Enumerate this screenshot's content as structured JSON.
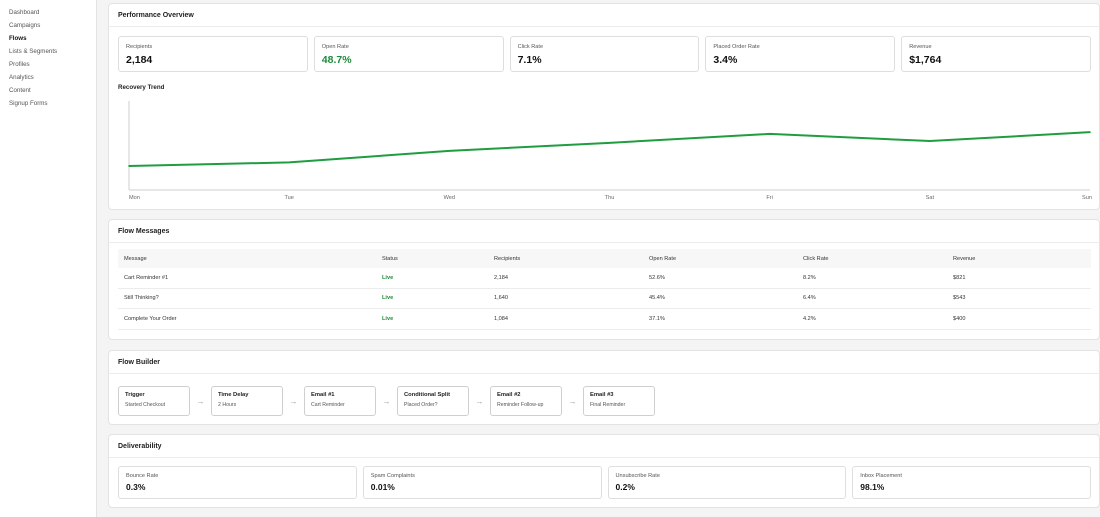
{
  "sidebar": {
    "items": [
      {
        "label": "Dashboard"
      },
      {
        "label": "Campaigns"
      },
      {
        "label": "Flows"
      },
      {
        "label": "Lists & Segments"
      },
      {
        "label": "Profiles"
      },
      {
        "label": "Analytics"
      },
      {
        "label": "Content"
      },
      {
        "label": "Signup Forms"
      }
    ],
    "active": "Flows"
  },
  "performance": {
    "title": "Performance Overview",
    "metrics": [
      {
        "label": "Recipients",
        "value": "2,184"
      },
      {
        "label": "Open Rate",
        "value": "48.7%"
      },
      {
        "label": "Click Rate",
        "value": "7.1%"
      },
      {
        "label": "Placed Order Rate",
        "value": "3.4%"
      },
      {
        "label": "Revenue",
        "value": "$1,764"
      }
    ],
    "accent_color": "#1f8a3b"
  },
  "chart_data": {
    "type": "line",
    "title": "Recovery Trend",
    "categories": [
      "Mon",
      "Tue",
      "Wed",
      "Thu",
      "Fri",
      "Sat",
      "Sun"
    ],
    "series": [
      {
        "values": [
          0.27,
          0.31,
          0.44,
          0.53,
          0.63,
          0.55,
          0.65
        ],
        "color": "#1f9d3f"
      }
    ],
    "grid": false,
    "note_values": "relative level on unlabeled y axis (0 = axis baseline, 1 = top of axis)"
  },
  "messages": {
    "title": "Flow Messages",
    "columns": [
      "Message",
      "Status",
      "Recipients",
      "Open Rate",
      "Click Rate",
      "Revenue"
    ],
    "rows": [
      [
        "Cart Reminder #1",
        "Live",
        "2,184",
        "52.6%",
        "8.2%",
        "$821"
      ],
      [
        "Still Thinking?",
        "Live",
        "1,640",
        "45.4%",
        "6.4%",
        "$543"
      ],
      [
        "Complete Your Order",
        "Live",
        "1,084",
        "37.1%",
        "4.2%",
        "$400"
      ]
    ]
  },
  "builder": {
    "title": "Flow Builder",
    "arrow": "→",
    "steps": [
      {
        "title": "Trigger",
        "sub": "Started Checkout"
      },
      {
        "title": "Time Delay",
        "sub": "2 Hours"
      },
      {
        "title": "Email #1",
        "sub": "Cart Reminder"
      },
      {
        "title": "Conditional Split",
        "sub": "Placed Order?"
      },
      {
        "title": "Email #2",
        "sub": "Reminder Follow-up"
      },
      {
        "title": "Email #3",
        "sub": "Final Reminder"
      }
    ]
  },
  "deliverability": {
    "title": "Deliverability",
    "metrics": [
      {
        "label": "Bounce Rate",
        "value": "0.3%"
      },
      {
        "label": "Spam Complaints",
        "value": "0.01%"
      },
      {
        "label": "Unsubscribe Rate",
        "value": "0.2%"
      },
      {
        "label": "Inbox Placement",
        "value": "98.1%"
      }
    ]
  }
}
